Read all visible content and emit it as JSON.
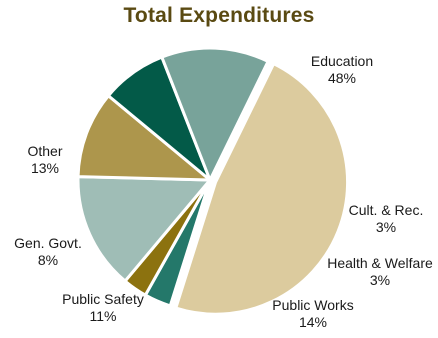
{
  "colors": {
    "title": "#5a4a12",
    "separator": "#ffffff"
  },
  "chart_data": {
    "type": "pie",
    "title": "Total Expenditures",
    "start_angle_deg": -63.9,
    "exploded_slice": "Education",
    "slices": [
      {
        "name": "Education",
        "label": "Education",
        "pct_label": "48%",
        "value": 48.0,
        "color": "#dccb9e"
      },
      {
        "name": "Cult. & Rec.",
        "label": "Cult. & Rec.",
        "pct_label": "3%",
        "value": 3.3,
        "color": "#24786a"
      },
      {
        "name": "Health & Welfare",
        "label": "Health & Welfare",
        "pct_label": "3%",
        "value": 3.0,
        "color": "#8c720f"
      },
      {
        "name": "Public Works",
        "label": "Public Works",
        "pct_label": "14%",
        "value": 14.4,
        "color": "#9fbdb6"
      },
      {
        "name": "Public Safety",
        "label": "Public Safety",
        "pct_label": "11%",
        "value": 10.7,
        "color": "#ad964c"
      },
      {
        "name": "Gen. Govt.",
        "label": "Gen. Govt.",
        "pct_label": "8%",
        "value": 8.1,
        "color": "#035a48"
      },
      {
        "name": "Other",
        "label": "Other",
        "pct_label": "13%",
        "value": 13.3,
        "color": "#78a39a"
      }
    ]
  }
}
